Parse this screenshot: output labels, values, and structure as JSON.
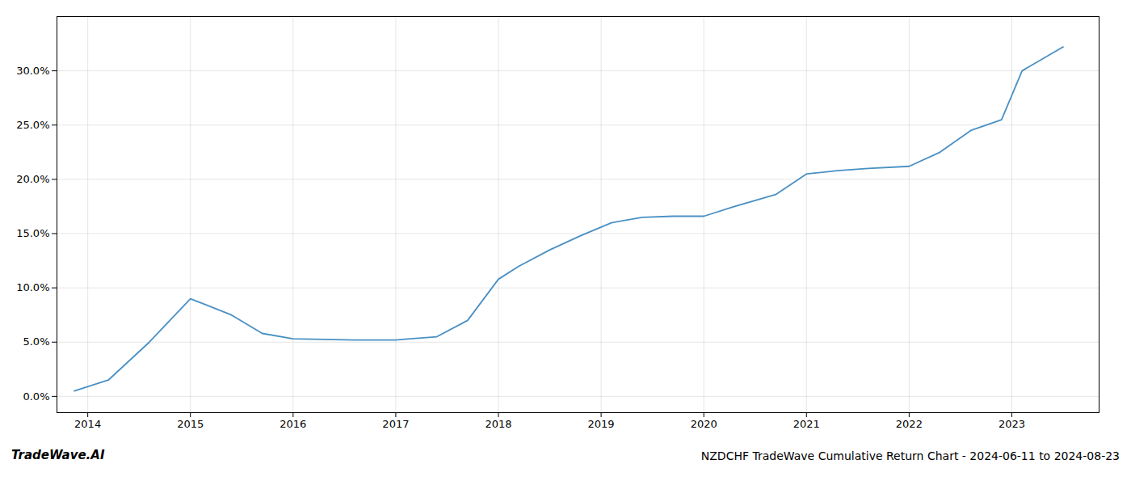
{
  "chart_data": {
    "type": "line",
    "title": "NZDCHF TradeWave Cumulative Return Chart - 2024-06-11 to 2024-08-23",
    "annotations": [
      {
        "text": "TradeWave.AI"
      }
    ],
    "x": [
      2013.87,
      2014.2,
      2014.6,
      2015.0,
      2015.4,
      2015.7,
      2016.0,
      2016.3,
      2016.6,
      2017.0,
      2017.4,
      2017.7,
      2018.0,
      2018.2,
      2018.5,
      2018.8,
      2019.1,
      2019.4,
      2019.7,
      2020.0,
      2020.3,
      2020.7,
      2021.0,
      2021.3,
      2021.6,
      2022.0,
      2022.3,
      2022.6,
      2022.9,
      2023.1,
      2023.5
    ],
    "values": [
      0.5,
      1.5,
      5.0,
      9.0,
      7.5,
      5.8,
      5.3,
      5.25,
      5.2,
      5.2,
      5.5,
      7.0,
      10.8,
      12.0,
      13.5,
      14.8,
      16.0,
      16.5,
      16.6,
      16.6,
      17.5,
      18.6,
      20.5,
      20.8,
      21.0,
      21.2,
      22.5,
      24.5,
      25.5,
      30.0,
      32.2
    ],
    "color": "#4a90c4",
    "xlim": [
      2013.7,
      2023.85
    ],
    "ylim": [
      -1.5,
      35
    ],
    "xticks": [
      2014,
      2015,
      2016,
      2017,
      2018,
      2019,
      2020,
      2021,
      2022,
      2023
    ],
    "yticks": [
      {
        "value": 0,
        "label": "0.0%"
      },
      {
        "value": 5,
        "label": "5.0%"
      },
      {
        "value": 10,
        "label": "10.0%"
      },
      {
        "value": 15,
        "label": "15.0%"
      },
      {
        "value": 20,
        "label": "20.0%"
      },
      {
        "value": 25,
        "label": "25.0%"
      },
      {
        "value": 30,
        "label": "30.0%"
      }
    ],
    "grid": true
  }
}
